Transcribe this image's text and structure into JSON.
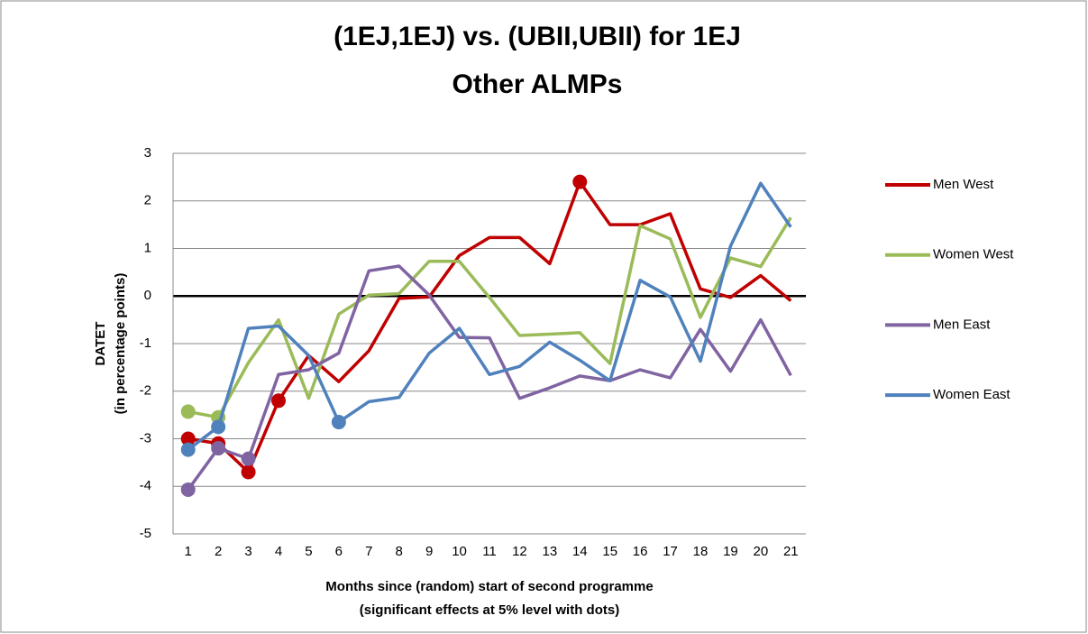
{
  "chart_data": {
    "type": "line",
    "title": [
      "(1EJ,1EJ) vs. (UBII,UBII) for 1EJ",
      "Other ALMPs"
    ],
    "y_label": [
      "DATET",
      "(in percentage points)"
    ],
    "x_label": [
      "Months since (random) start of second programme",
      "(significant  effects at 5% level with dots)"
    ],
    "categories": [
      "1",
      "2",
      "3",
      "4",
      "5",
      "6",
      "7",
      "8",
      "9",
      "10",
      "11",
      "12",
      "13",
      "14",
      "15",
      "16",
      "17",
      "18",
      "19",
      "20",
      "21"
    ],
    "ylim": [
      -5,
      3
    ],
    "yticks": [
      -5,
      -4,
      -3,
      -2,
      -1,
      0,
      1,
      2,
      3
    ],
    "grid": true,
    "legend": "right",
    "series": [
      {
        "name": "Men West",
        "color": "#c00000",
        "values": [
          -3.0,
          -3.1,
          -3.7,
          -2.2,
          -1.25,
          -1.8,
          -1.15,
          -0.05,
          -0.02,
          0.85,
          1.23,
          1.23,
          0.68,
          2.4,
          1.5,
          1.5,
          1.73,
          0.15,
          -0.03,
          0.43,
          -0.1
        ],
        "significant": [
          true,
          true,
          true,
          true,
          false,
          false,
          false,
          false,
          false,
          false,
          false,
          false,
          false,
          true,
          false,
          false,
          false,
          false,
          false,
          false,
          false
        ]
      },
      {
        "name": "Women West",
        "color": "#9bbb59",
        "values": [
          -2.43,
          -2.55,
          -1.4,
          -0.5,
          -2.15,
          -0.38,
          0.02,
          0.05,
          0.73,
          0.73,
          -0.03,
          -0.83,
          -0.8,
          -0.77,
          -1.42,
          1.48,
          1.2,
          -0.45,
          0.8,
          0.62,
          1.65
        ],
        "significant": [
          true,
          true,
          false,
          false,
          false,
          false,
          false,
          false,
          false,
          false,
          false,
          false,
          false,
          false,
          false,
          false,
          false,
          false,
          false,
          false,
          false
        ]
      },
      {
        "name": "Men East",
        "color": "#8064a2",
        "values": [
          -4.07,
          -3.2,
          -3.42,
          -1.65,
          -1.55,
          -1.2,
          0.53,
          0.63,
          0.02,
          -0.87,
          -0.88,
          -2.15,
          -1.93,
          -1.68,
          -1.78,
          -1.55,
          -1.72,
          -0.7,
          -1.58,
          -0.5,
          -1.67
        ],
        "significant": [
          true,
          true,
          true,
          false,
          false,
          false,
          false,
          false,
          false,
          false,
          false,
          false,
          false,
          false,
          false,
          false,
          false,
          false,
          false,
          false,
          false
        ]
      },
      {
        "name": "Women East",
        "color": "#4f81bd",
        "values": [
          -3.23,
          -2.75,
          -0.68,
          -0.63,
          -1.25,
          -2.65,
          -2.22,
          -2.13,
          -1.2,
          -0.68,
          -1.65,
          -1.48,
          -0.97,
          -1.35,
          -1.78,
          0.33,
          -0.02,
          -1.37,
          1.05,
          2.37,
          1.45
        ],
        "significant": [
          true,
          true,
          false,
          false,
          false,
          true,
          false,
          false,
          false,
          false,
          false,
          false,
          false,
          false,
          false,
          false,
          false,
          false,
          false,
          false,
          false
        ]
      }
    ]
  }
}
